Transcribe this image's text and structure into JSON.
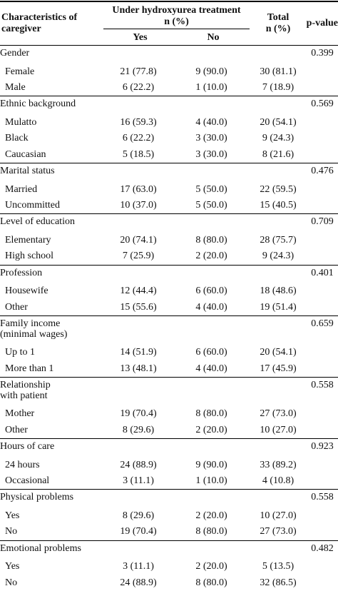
{
  "header": {
    "characteristics": "Characteristics of caregiver",
    "under_treatment": "Under hydroxyurea treatment",
    "n_pct": "n (%)",
    "yes": "Yes",
    "no": "No",
    "total": "Total",
    "total_n": "n (%)",
    "pvalue": "p-value"
  },
  "rows": [
    {
      "type": "group",
      "label": "Gender",
      "p": "0.399"
    },
    {
      "type": "sub",
      "label": "Female",
      "yes": "21 (77.8)",
      "no": "9 (90.0)",
      "total": "30 (81.1)"
    },
    {
      "type": "sub",
      "label": "Male",
      "yes": "6 (22.2)",
      "no": "1 (10.0)",
      "total": "7 (18.9)"
    },
    {
      "type": "group",
      "label": "Ethnic background",
      "p": "0.569"
    },
    {
      "type": "sub",
      "label": "Mulatto",
      "yes": "16 (59.3)",
      "no": "4 (40.0)",
      "total": "20 (54.1)"
    },
    {
      "type": "sub",
      "label": "Black",
      "yes": "6 (22.2)",
      "no": "3 (30.0)",
      "total": "9 (24.3)"
    },
    {
      "type": "sub",
      "label": "Caucasian",
      "yes": "5 (18.5)",
      "no": "3 (30.0)",
      "total": "8 (21.6)"
    },
    {
      "type": "group",
      "label": "Marital status",
      "p": "0.476"
    },
    {
      "type": "sub",
      "label": "Married",
      "yes": "17 (63.0)",
      "no": "5 (50.0)",
      "total": "22 (59.5)"
    },
    {
      "type": "sub",
      "label": "Uncommitted",
      "yes": "10 (37.0)",
      "no": "5 (50.0)",
      "total": "15 (40.5)"
    },
    {
      "type": "group",
      "label": "Level of education",
      "p": "0.709"
    },
    {
      "type": "sub",
      "label": "Elementary",
      "yes": "20 (74.1)",
      "no": "8 (80.0)",
      "total": "28 (75.7)"
    },
    {
      "type": "sub",
      "label": "High school",
      "yes": "7 (25.9)",
      "no": "2 (20.0)",
      "total": "9 (24.3)"
    },
    {
      "type": "group",
      "label": "Profession",
      "p": "0.401"
    },
    {
      "type": "sub",
      "label": "Housewife",
      "yes": "12 (44.4)",
      "no": "6 (60.0)",
      "total": "18 (48.6)"
    },
    {
      "type": "sub",
      "label": "Other",
      "yes": "15 (55.6)",
      "no": "4 (40.0)",
      "total": "19 (51.4)"
    },
    {
      "type": "group",
      "label": "Family income",
      "label2": "(minimal wages)",
      "p": "0.659"
    },
    {
      "type": "sub",
      "label": "Up to 1",
      "yes": "14 (51.9)",
      "no": "6 (60.0)",
      "total": "20 (54.1)"
    },
    {
      "type": "sub",
      "label": "More than 1",
      "yes": "13 (48.1)",
      "no": "4 (40.0)",
      "total": "17 (45.9)"
    },
    {
      "type": "group",
      "label": "Relationship",
      "label2": "with patient",
      "p": "0.558"
    },
    {
      "type": "sub",
      "label": "Mother",
      "yes": "19 (70.4)",
      "no": "8 (80.0)",
      "total": "27 (73.0)"
    },
    {
      "type": "sub",
      "label": "Other",
      "yes": "8 (29.6)",
      "no": "2 (20.0)",
      "total": "10 (27.0)"
    },
    {
      "type": "group",
      "label": "Hours of care",
      "p": "0.923"
    },
    {
      "type": "sub",
      "label": "24 hours",
      "yes": "24 (88.9)",
      "no": "9 (90.0)",
      "total": "33 (89.2)"
    },
    {
      "type": "sub",
      "label": "Occasional",
      "yes": "3 (11.1)",
      "no": "1 (10.0)",
      "total": "4 (10.8)"
    },
    {
      "type": "group",
      "label": "Physical problems",
      "p": "0.558"
    },
    {
      "type": "sub",
      "label": "Yes",
      "yes": "8 (29.6)",
      "no": "2 (20.0)",
      "total": "10 (27.0)"
    },
    {
      "type": "sub",
      "label": "No",
      "yes": "19 (70.4)",
      "no": "8 (80.0)",
      "total": "27 (73.0)"
    },
    {
      "type": "group",
      "label": "Emotional problems",
      "p": "0.482"
    },
    {
      "type": "sub",
      "label": "Yes",
      "yes": "3 (11.1)",
      "no": "2 (20.0)",
      "total": "5 (13.5)"
    },
    {
      "type": "sub",
      "label": "No",
      "yes": "24 (88.9)",
      "no": "8 (80.0)",
      "total": "32 (86.5)"
    }
  ]
}
